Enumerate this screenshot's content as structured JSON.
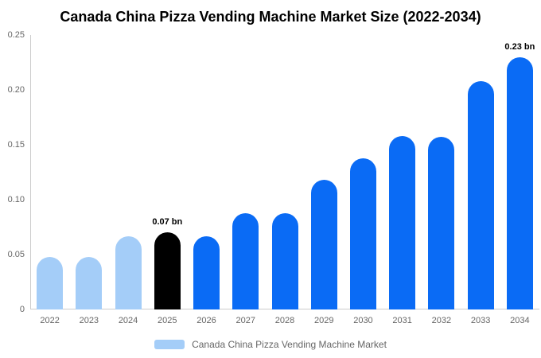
{
  "title": "Canada China Pizza Vending Machine Market Size (2022-2034)",
  "chart_data": {
    "type": "bar",
    "title": "Canada China Pizza Vending Machine Market Size (2022-2034)",
    "xlabel": "",
    "ylabel": "",
    "grid": false,
    "legend_position": "bottom",
    "categories": [
      "2022",
      "2023",
      "2024",
      "2025",
      "2026",
      "2027",
      "2028",
      "2029",
      "2030",
      "2031",
      "2032",
      "2033",
      "2034"
    ],
    "series": [
      {
        "name": "Canada China Pizza Vending Machine Market",
        "unit": "bn",
        "values": [
          0.048,
          0.048,
          0.067,
          0.07,
          0.067,
          0.088,
          0.088,
          0.118,
          0.138,
          0.158,
          0.157,
          0.208,
          0.23
        ]
      }
    ],
    "ylim": [
      0,
      0.25
    ],
    "yticks": [
      0,
      0.05,
      0.1,
      0.15,
      0.2,
      0.25
    ],
    "ytick_labels": [
      "0",
      "0.05",
      "0.10",
      "0.15",
      "0.20",
      "0.25"
    ],
    "annotations": [
      {
        "category_index": 3,
        "text": "0.07 bn"
      },
      {
        "category_index": 12,
        "text": "0.23 bn"
      }
    ],
    "bar_colors": [
      "#a4cdf8",
      "#a4cdf8",
      "#a4cdf8",
      "#000000",
      "#0a6bf5",
      "#0a6bf5",
      "#0a6bf5",
      "#0a6bf5",
      "#0a6bf5",
      "#0a6bf5",
      "#0a6bf5",
      "#0a6bf5",
      "#0a6bf5"
    ],
    "colors": {
      "historical": "#a4cdf8",
      "base_year": "#000000",
      "forecast": "#0a6bf5",
      "axis_line": "#cccccc",
      "axis_text": "#666666",
      "legend_text": "#666666",
      "annotation_text": "#000000",
      "background": "#ffffff"
    }
  }
}
